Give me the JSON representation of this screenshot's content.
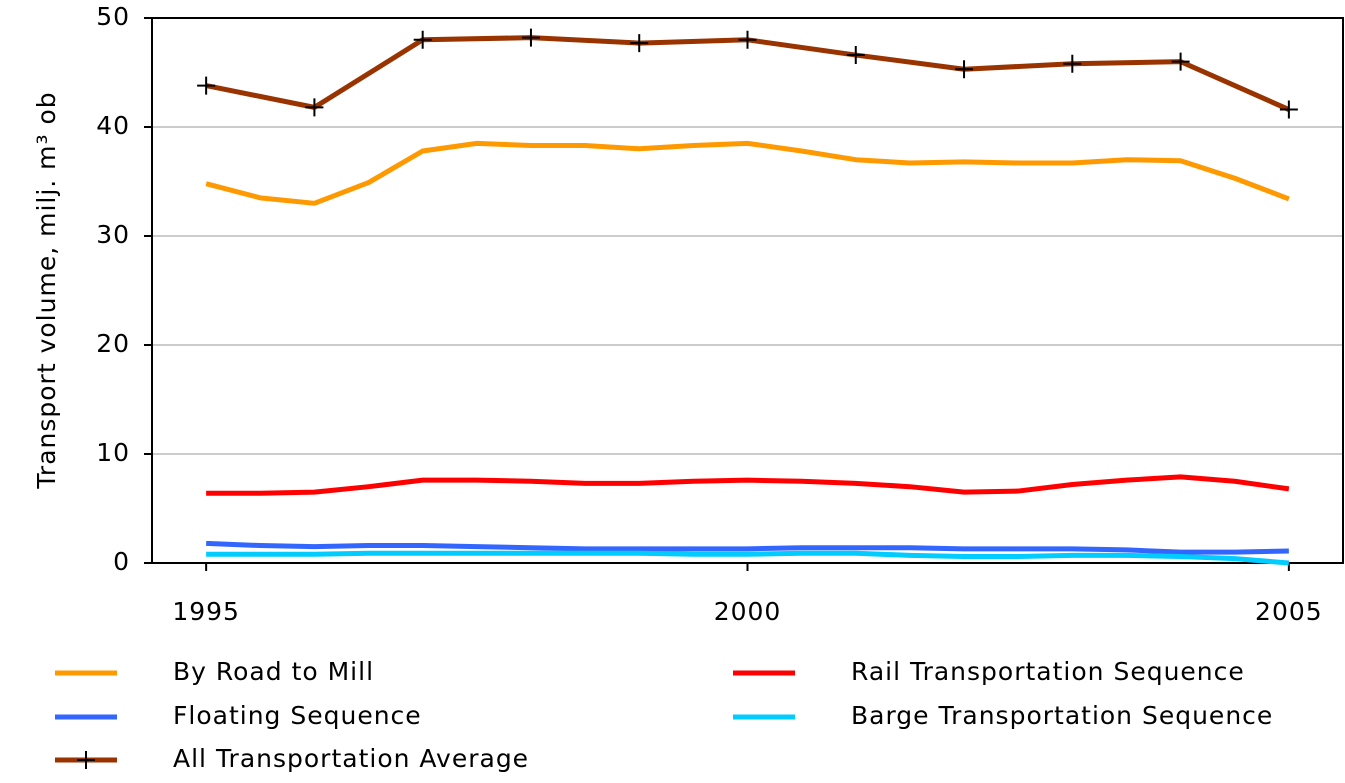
{
  "chart_data": {
    "type": "line",
    "y_label": "Transport volume, milj. m³ ob",
    "xlim": [
      1994.5,
      2005.5
    ],
    "xticks": [
      1995,
      2000,
      2005
    ],
    "ylim": [
      0,
      50
    ],
    "yticks": [
      0,
      10,
      20,
      30,
      40,
      50
    ],
    "grid": true,
    "legend_position": "bottom",
    "x": [
      1995,
      1995.5,
      1996,
      1996.5,
      1997,
      1997.5,
      1998,
      1998.5,
      1999,
      1999.5,
      2000,
      2000.5,
      2001,
      2001.5,
      2002,
      2002.5,
      2003,
      2003.5,
      2004,
      2004.5,
      2005
    ],
    "series": [
      {
        "name": "By Road to Mill",
        "color": "#ff9900",
        "values": [
          34.8,
          33.5,
          33.0,
          34.9,
          37.8,
          38.5,
          38.3,
          38.3,
          38.0,
          38.3,
          38.5,
          37.8,
          37.0,
          36.7,
          36.8,
          36.7,
          36.7,
          37.0,
          36.9,
          35.3,
          33.4
        ]
      },
      {
        "name": "Rail Transportation Sequence",
        "color": "#ff0000",
        "values": [
          6.4,
          6.4,
          6.5,
          7.0,
          7.6,
          7.6,
          7.5,
          7.3,
          7.3,
          7.5,
          7.6,
          7.5,
          7.3,
          7.0,
          6.5,
          6.6,
          7.2,
          7.6,
          7.9,
          7.5,
          6.8
        ]
      },
      {
        "name": "Floating Sequence",
        "color": "#3366ff",
        "values": [
          1.8,
          1.6,
          1.5,
          1.6,
          1.6,
          1.5,
          1.4,
          1.3,
          1.3,
          1.3,
          1.3,
          1.4,
          1.4,
          1.4,
          1.3,
          1.3,
          1.3,
          1.2,
          1.0,
          1.0,
          1.1
        ]
      },
      {
        "name": "Barge Transportation Sequence",
        "color": "#00ccff",
        "values": [
          0.8,
          0.8,
          0.8,
          0.9,
          0.9,
          0.9,
          0.9,
          0.9,
          0.9,
          0.8,
          0.8,
          0.9,
          0.9,
          0.7,
          0.6,
          0.6,
          0.7,
          0.7,
          0.6,
          0.4,
          0.0
        ]
      },
      {
        "name": "All Transportation Average",
        "color": "#993300",
        "marker": "+",
        "x": [
          1995,
          1996,
          1997,
          1998,
          1999,
          2000,
          2001,
          2002,
          2003,
          2004,
          2005
        ],
        "values": [
          43.8,
          41.8,
          48.0,
          48.2,
          47.7,
          48.0,
          46.6,
          45.3,
          45.8,
          46.0,
          41.6
        ]
      }
    ]
  }
}
